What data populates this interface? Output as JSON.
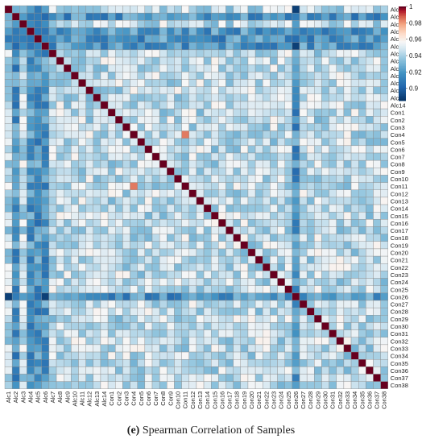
{
  "chart_data": {
    "type": "heatmap",
    "title": "",
    "xlabel": "",
    "ylabel": "",
    "row_labels": [
      "Alc1",
      "Alc2",
      "Alc3",
      "Alc4",
      "Alc5",
      "Alc6",
      "Alc7",
      "Alc8",
      "Alc9",
      "Alc10",
      "Alc11",
      "Alc12",
      "Alc13",
      "Alc14",
      "Con1",
      "Con2",
      "Con3",
      "Con4",
      "Con5",
      "Con6",
      "Con7",
      "Con8",
      "Con9",
      "Con10",
      "Con11",
      "Con12",
      "Con13",
      "Con14",
      "Con15",
      "Con16",
      "Con17",
      "Con18",
      "Con19",
      "Con20",
      "Con21",
      "Con22",
      "Con23",
      "Con24",
      "Con25",
      "Con26",
      "Con27",
      "Con28",
      "Con29",
      "Con30",
      "Con31",
      "Con32",
      "Con33",
      "Con34",
      "Con35",
      "Con36",
      "Con37",
      "Con38"
    ],
    "col_labels": [
      "Alc1",
      "Alc2",
      "Alc3",
      "Alc4",
      "Alc5",
      "Alc6",
      "Alc7",
      "Alc8",
      "Alc9",
      "Alc10",
      "Alc11",
      "Alc12",
      "Alc13",
      "Alc14",
      "Con1",
      "Con2",
      "Con3",
      "Con4",
      "Con5",
      "Con6",
      "Con7",
      "Con8",
      "Con9",
      "Con10",
      "Con11",
      "Con12",
      "Con13",
      "Con14",
      "Con15",
      "Con16",
      "Con17",
      "Con18",
      "Con19",
      "Con20",
      "Con21",
      "Con22",
      "Con23",
      "Con24",
      "Con25",
      "Con26",
      "Con27",
      "Con28",
      "Con29",
      "Con30",
      "Con31",
      "Con32",
      "Con33",
      "Con34",
      "Con35",
      "Con36",
      "Con37",
      "Con38"
    ],
    "value_range": [
      0.885,
      1.0
    ],
    "diagonal_value": 1.0,
    "typical_value": 0.945,
    "notable_values": [
      {
        "row": "Con4",
        "col": "Con11",
        "value": 0.985
      },
      {
        "row": "Con11",
        "col": "Con4",
        "value": 0.985
      },
      {
        "row": "Alc2",
        "col": "Alc1",
        "value": 0.93
      },
      {
        "row": "Alc6",
        "col": "Con26",
        "value": 0.89
      },
      {
        "row": "Con26",
        "col": "Alc1",
        "value": 0.89
      }
    ],
    "low_correlation_samples": [
      "Alc2",
      "Alc4",
      "Alc5",
      "Alc6",
      "Con26"
    ],
    "colorbar": {
      "ticks": [
        "1",
        "0.98",
        "0.96",
        "0.94",
        "0.92",
        "0.9"
      ],
      "tick_values": [
        1.0,
        0.98,
        0.96,
        0.94,
        0.92,
        0.9
      ],
      "min": 0.885,
      "max": 1.0,
      "colors": {
        "high": "#67001f",
        "mid": "#f7f7f7",
        "low": "#053061"
      }
    },
    "grid": true,
    "legend_position": "top-right"
  },
  "caption": {
    "label": "(e)",
    "text": "Spearman Correlation of Samples"
  }
}
